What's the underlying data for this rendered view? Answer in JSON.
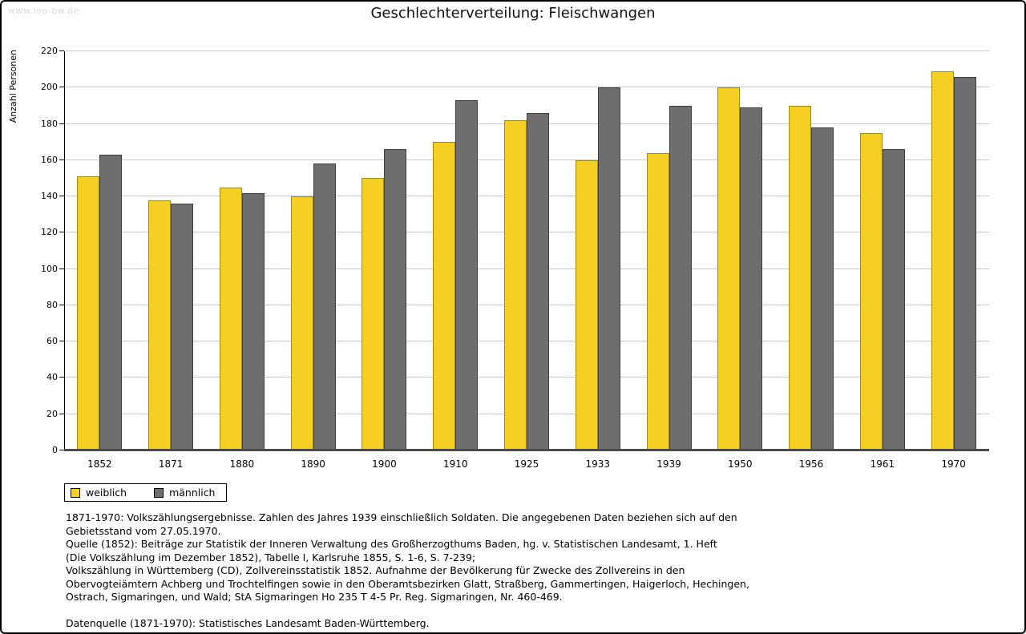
{
  "watermark": "www.leo-bw.de",
  "title": "Geschlechterverteilung: Fleischwangen",
  "chart_data": {
    "type": "bar",
    "title": "Geschlechterverteilung: Fleischwangen",
    "xlabel": "",
    "ylabel": "Anzahl Personen",
    "ylim": [
      0,
      220
    ],
    "ytick_step": 20,
    "grid": true,
    "legend_position": "bottom-left",
    "categories": [
      "1852",
      "1871",
      "1880",
      "1890",
      "1900",
      "1910",
      "1925",
      "1933",
      "1939",
      "1950",
      "1956",
      "1961",
      "1970"
    ],
    "series": [
      {
        "name": "weiblich",
        "color": "#f5d022",
        "border_color": "#a08c0a",
        "values": [
          151,
          138,
          145,
          140,
          150,
          170,
          182,
          160,
          164,
          200,
          190,
          175,
          209
        ]
      },
      {
        "name": "männlich",
        "color": "#6e6e6e",
        "border_color": "#3f3f3f",
        "values": [
          163,
          136,
          142,
          158,
          166,
          193,
          186,
          200,
          190,
          189,
          178,
          166,
          206
        ]
      }
    ]
  },
  "colors": {
    "grid": "#c9c9c9",
    "axis": "#000000",
    "baseline": "#4a4a4a",
    "watermark": "#d9d9d9"
  },
  "notes_lines": [
    "1871-1970: Volkszählungsergebnisse. Zahlen des Jahres 1939 einschließlich Soldaten. Die angegebenen Daten beziehen sich auf den",
    "Gebietsstand vom 27.05.1970.",
    "Quelle (1852): Beiträge zur Statistik der Inneren Verwaltung des Großherzogthums Baden, hg. v. Statistischen Landesamt, 1. Heft",
    "(Die Volkszählung im Dezember 1852), Tabelle I, Karlsruhe 1855, S. 1-6, S. 7-239;",
    "Volkszählung in Württemberg (CD), Zollvereinsstatistik 1852. Aufnahme der Bevölkerung für Zwecke des Zollvereins in den",
    "Obervogteiämtern Achberg und Trochtelfingen sowie in den Oberamtsbezirken Glatt, Straßberg, Gammertingen, Haigerloch, Hechingen,",
    "Ostrach, Sigmaringen, und Wald; StA Sigmaringen Ho 235 T 4-5 Pr. Reg. Sigmaringen, Nr. 460-469.",
    "",
    "Datenquelle (1871-1970): Statistisches Landesamt Baden-Württemberg."
  ]
}
